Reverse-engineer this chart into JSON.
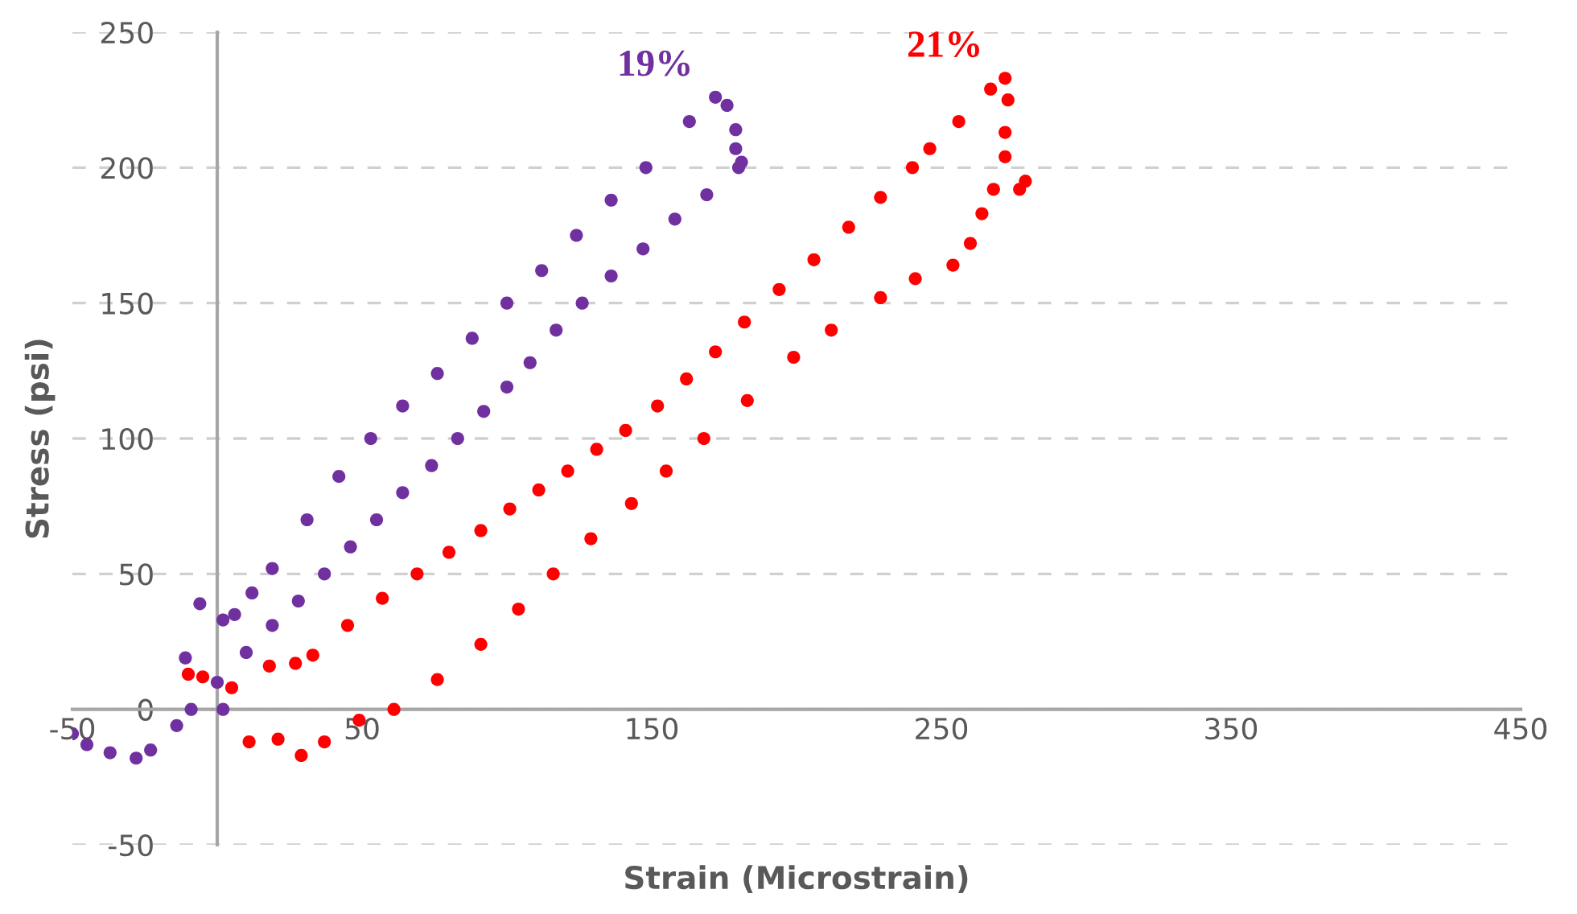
{
  "chart_data": {
    "type": "scatter",
    "xlabel": "Strain (Microstrain)",
    "ylabel": "Stress (psi)",
    "xlim": [
      -50,
      450
    ],
    "xticks": [
      -50,
      50,
      150,
      250,
      350,
      450
    ],
    "ylim": [
      -50,
      250
    ],
    "yticks": [
      -50,
      0,
      50,
      100,
      150,
      200,
      250
    ],
    "grid": "y",
    "marker": "circle",
    "series": [
      {
        "name": "19%",
        "color": "#7030a0",
        "x": [
          -50,
          -45,
          -37,
          -28,
          -23,
          -14,
          -9,
          0,
          10,
          19,
          28,
          37,
          46,
          55,
          64,
          74,
          83,
          92,
          100,
          108,
          117,
          126,
          136,
          147,
          158,
          169,
          180,
          181,
          179,
          179,
          176,
          172,
          163,
          148,
          136,
          124,
          112,
          100,
          88,
          76,
          64,
          53,
          42,
          31,
          19,
          12,
          6,
          2,
          -6,
          -11,
          2
        ],
        "values": [
          -9,
          -13,
          -16,
          -18,
          -15,
          -6,
          0,
          10,
          21,
          31,
          40,
          50,
          60,
          70,
          80,
          90,
          100,
          110,
          119,
          128,
          140,
          150,
          160,
          170,
          181,
          190,
          200,
          202,
          207,
          214,
          223,
          226,
          217,
          200,
          188,
          175,
          162,
          150,
          137,
          124,
          112,
          100,
          86,
          70,
          52,
          43,
          35,
          33,
          39,
          19,
          0
        ]
      },
      {
        "name": "21%",
        "color": "#ff0000",
        "x": [
          -10,
          -5,
          5,
          11,
          21,
          29,
          37,
          49,
          61,
          76,
          91,
          104,
          116,
          129,
          143,
          155,
          168,
          183,
          199,
          212,
          229,
          241,
          254,
          260,
          264,
          268,
          277,
          279,
          272,
          272,
          273,
          272,
          267,
          256,
          246,
          240,
          229,
          218,
          206,
          194,
          182,
          172,
          162,
          152,
          141,
          131,
          121,
          111,
          101,
          91,
          80,
          69,
          57,
          45,
          33,
          27,
          18
        ],
        "values": [
          13,
          12,
          8,
          -12,
          -11,
          -17,
          -12,
          -4,
          0,
          11,
          24,
          37,
          50,
          63,
          76,
          88,
          100,
          114,
          130,
          140,
          152,
          159,
          164,
          172,
          183,
          192,
          192,
          195,
          204,
          213,
          225,
          233,
          229,
          217,
          207,
          200,
          189,
          178,
          166,
          155,
          143,
          132,
          122,
          112,
          103,
          96,
          88,
          81,
          74,
          66,
          58,
          50,
          41,
          31,
          20,
          17,
          16
        ]
      }
    ]
  }
}
